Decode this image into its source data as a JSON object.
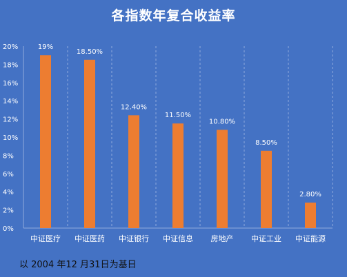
{
  "chart_data": {
    "type": "bar",
    "title": "各指数年复合收益率",
    "categories": [
      "中证医疗",
      "中证医药",
      "中证银行",
      "中证信息",
      "房地产",
      "中证工业",
      "中证能源"
    ],
    "values": [
      19,
      18.5,
      12.4,
      11.5,
      10.8,
      8.5,
      2.8
    ],
    "data_labels": [
      "19%",
      "18.50%",
      "12.40%",
      "11.50%",
      "10.80%",
      "8.50%",
      "2.80%"
    ],
    "y_ticks": [
      "0%",
      "2%",
      "4%",
      "6%",
      "8%",
      "10%",
      "12%",
      "14%",
      "16%",
      "18%",
      "20%"
    ],
    "ylim": [
      0,
      20
    ],
    "xlabel": "",
    "ylabel": "",
    "grid": "vertical-dashed",
    "legend": "none",
    "note": "以 2004 年12 月31日为基日"
  },
  "colors": {
    "background": "#4472C4",
    "bar": "#ED7D31",
    "text": "#FFFFFF",
    "gridline": "#8FAADC"
  }
}
